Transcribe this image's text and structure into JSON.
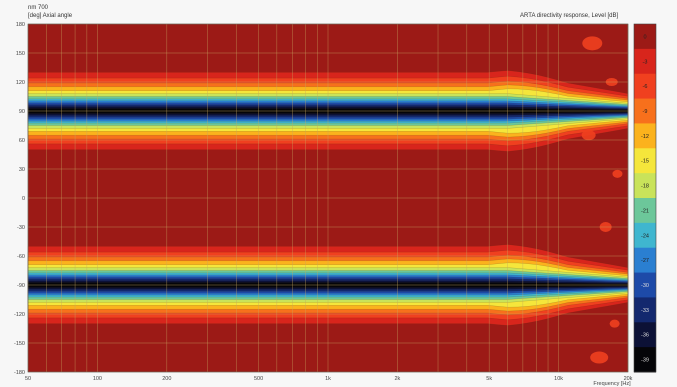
{
  "header": {
    "line1": "nm 700",
    "line2": "[deg] Axial angle",
    "right": "ARTA directivity response, Level [dB]"
  },
  "chart_data": {
    "type": "heatmap",
    "title": "ARTA directivity response, Level [dB]",
    "ylabel": "[deg] Axial angle",
    "xlabel": "Frequency [Hz]",
    "x_scale": "log",
    "xlim": [
      50,
      20000
    ],
    "ylim": [
      -180,
      180
    ],
    "y_ticks": [
      180,
      150,
      120,
      90,
      60,
      30,
      0,
      -30,
      -60,
      -90,
      -120,
      -150,
      -180
    ],
    "x_ticks": [
      {
        "value": 50,
        "label": "50"
      },
      {
        "value": 100,
        "label": "100"
      },
      {
        "value": 200,
        "label": "200"
      },
      {
        "value": 500,
        "label": "500"
      },
      {
        "value": 1000,
        "label": "1k"
      },
      {
        "value": 2000,
        "label": "2k"
      },
      {
        "value": 5000,
        "label": "5k"
      },
      {
        "value": 10000,
        "label": "10k"
      },
      {
        "value": 20000,
        "label": "20k"
      }
    ],
    "colorbar_ticks": [
      "0",
      "-3",
      "-6",
      "-9",
      "-12",
      "-15",
      "-18",
      "-21",
      "-24",
      "-27",
      "-30",
      "-33",
      "-36",
      "-39"
    ],
    "bands_deg": [
      {
        "name": "upper band",
        "center": 90
      },
      {
        "name": "lower band",
        "center": -90
      }
    ],
    "grid": true
  },
  "colors": {
    "frame": "#a9261f",
    "levels": [
      "#9c1a16",
      "#d8251c",
      "#f0401f",
      "#f7701c",
      "#fbb21d",
      "#f5e63b",
      "#c9e35a",
      "#6cc79a",
      "#3fb6cf",
      "#2a7fd1",
      "#1d4aa8",
      "#13286e",
      "#0c1136",
      "#050508"
    ],
    "grid": "#c8a860"
  }
}
